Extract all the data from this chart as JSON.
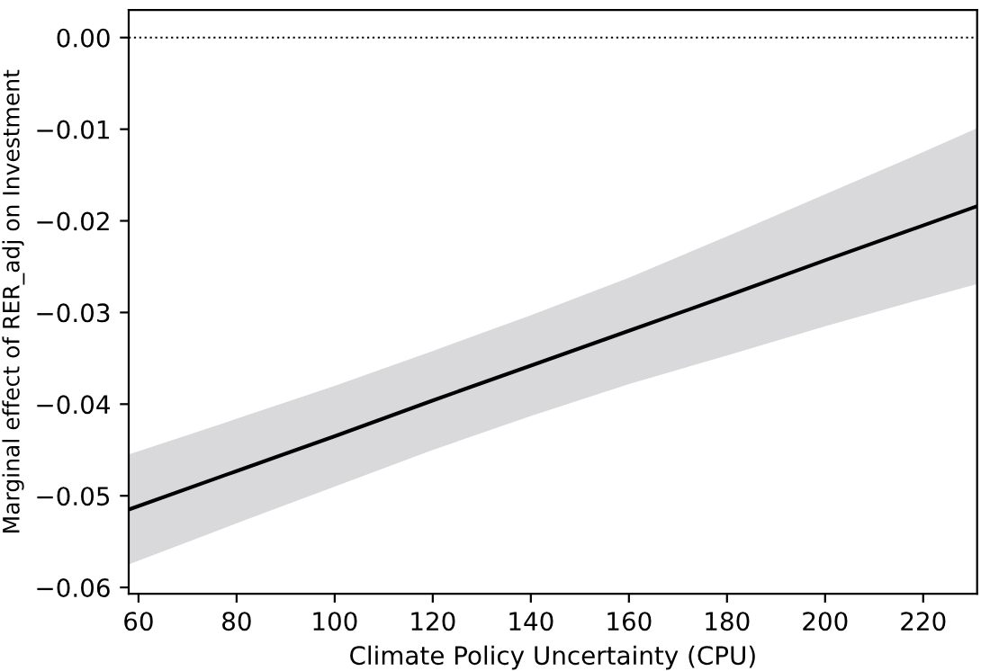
{
  "chart_data": {
    "type": "line",
    "xlabel": "Climate Policy Uncertainty (CPU)",
    "ylabel": "Marginal effect of RER_adj on Investment",
    "x": [
      58,
      80,
      100,
      120,
      140,
      160,
      180,
      200,
      220,
      231
    ],
    "series": [
      {
        "color": "#000000",
        "values": [
          -0.0515,
          -0.0473,
          -0.0435,
          -0.0396,
          -0.0358,
          -0.032,
          -0.0282,
          -0.0243,
          -0.0205,
          -0.0184
        ],
        "lower": [
          -0.0575,
          -0.053,
          -0.049,
          -0.045,
          -0.0413,
          -0.0378,
          -0.0347,
          -0.0315,
          -0.0285,
          -0.0269
        ],
        "upper": [
          -0.0455,
          -0.0416,
          -0.038,
          -0.0342,
          -0.0303,
          -0.0262,
          -0.0217,
          -0.0171,
          -0.0125,
          -0.0099
        ]
      }
    ],
    "xlim": [
      58,
      231
    ],
    "ylim": [
      -0.0607,
      0.003
    ],
    "xticks": [
      60,
      80,
      100,
      120,
      140,
      160,
      180,
      200,
      220
    ],
    "yticks": [
      {
        "value": 0,
        "label": "0.00"
      },
      {
        "value": -0.01,
        "label": "−0.01"
      },
      {
        "value": -0.02,
        "label": "−0.02"
      },
      {
        "value": -0.03,
        "label": "−0.03"
      },
      {
        "value": -0.04,
        "label": "−0.04"
      },
      {
        "value": -0.05,
        "label": "−0.05"
      },
      {
        "value": -0.06,
        "label": "−0.06"
      }
    ],
    "ref_lines": [
      {
        "axis": "y",
        "value": 0,
        "color": "#000000",
        "line_style": "dotted"
      }
    ],
    "grid": false,
    "legend": false,
    "marker": "none",
    "line_style": "solid"
  }
}
